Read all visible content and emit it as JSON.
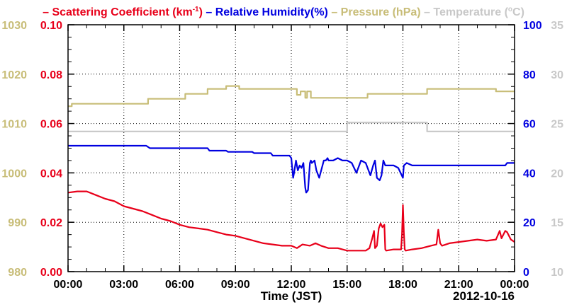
{
  "chart_data": {
    "type": "line",
    "date_label": "2012-10-16",
    "xlabel": "Time (JST)",
    "x_ticks": [
      "00:00",
      "03:00",
      "06:00",
      "09:00",
      "12:00",
      "15:00",
      "18:00",
      "21:00",
      "00:00"
    ],
    "xlim_hours": [
      0,
      24
    ],
    "grid": true,
    "legend_placement": "top",
    "legend": [
      {
        "dash": "–",
        "text": "Scattering Coefficient (km",
        "sup": "-1",
        "tail": ")",
        "color": "#e8001a"
      },
      {
        "dash": "–",
        "text": "Relative Humidity(%)",
        "sup": "",
        "tail": "",
        "color": "#0000e0"
      },
      {
        "dash": "–",
        "text": "Pressure (hPa)",
        "sup": "",
        "tail": "",
        "color": "#c8bd78"
      },
      {
        "dash": "–",
        "text": "Temperature (",
        "sup": "o",
        "tail": "C)",
        "color": "#c8c8c8"
      }
    ],
    "axes": {
      "pressure": {
        "side": "left-outer",
        "color": "#c8bd78",
        "ylim": [
          980,
          1030
        ],
        "ticks": [
          "980",
          "990",
          "1000",
          "1010",
          "1020",
          "1030"
        ]
      },
      "scattering": {
        "side": "left-inner",
        "color": "#e8001a",
        "ylim": [
          0,
          0.1
        ],
        "ticks": [
          "0.00",
          "0.02",
          "0.04",
          "0.06",
          "0.08",
          "0.10"
        ]
      },
      "humidity": {
        "side": "right-inner",
        "color": "#0000e0",
        "ylim": [
          0,
          100
        ],
        "ticks": [
          "0",
          "20",
          "40",
          "60",
          "80",
          "100"
        ]
      },
      "temperature": {
        "side": "right-outer",
        "color": "#c8c8c8",
        "ylim": [
          10,
          35
        ],
        "ticks": [
          "10",
          "15",
          "20",
          "25",
          "30",
          "35"
        ]
      }
    },
    "series": [
      {
        "name": "Pressure (hPa)",
        "axis": "pressure",
        "color": "#c8bd78",
        "step": true,
        "x": [
          0,
          0.2,
          4.3,
          6.3,
          7.5,
          8.5,
          9.2,
          12.3,
          12.5,
          12.75,
          12.85,
          13.05,
          15.0,
          16.1,
          19.3,
          23.0,
          24.0
        ],
        "y": [
          1013.5,
          1014.0,
          1015.0,
          1016.0,
          1017.0,
          1017.6,
          1017.0,
          1015.8,
          1016.5,
          1015.2,
          1016.5,
          1015.2,
          1015.2,
          1016.0,
          1017.0,
          1016.5,
          1016.5
        ]
      },
      {
        "name": "Temperature",
        "axis": "temperature",
        "color": "#c8c8c8",
        "step": true,
        "x": [
          0,
          15.0,
          19.3,
          24.0
        ],
        "y": [
          24.2,
          25.1,
          24.2,
          24.2
        ]
      },
      {
        "name": "Relative Humidity(%)",
        "axis": "humidity",
        "color": "#0000e0",
        "x": [
          0,
          4.2,
          4.4,
          7.5,
          7.6,
          8.5,
          8.6,
          9.9,
          10.0,
          10.9,
          11.0,
          11.9,
          12.0,
          12.1,
          12.15,
          12.25,
          12.35,
          12.45,
          12.55,
          12.65,
          12.75,
          12.8,
          12.9,
          13.0,
          13.05,
          13.1,
          13.25,
          13.35,
          13.5,
          13.75,
          13.85,
          13.95,
          14.0,
          14.25,
          14.5,
          14.75,
          15.0,
          15.25,
          15.5,
          15.75,
          16.0,
          16.25,
          16.4,
          16.5,
          16.6,
          16.75,
          16.85,
          16.95,
          17.05,
          17.3,
          17.5,
          17.75,
          18.0,
          18.05,
          18.2,
          18.5,
          19.0,
          19.5,
          20.0,
          21.0,
          22.0,
          23.0,
          23.5,
          23.6,
          23.8,
          24.0
        ],
        "y": [
          51,
          51,
          50,
          50,
          49,
          49,
          48.5,
          48.5,
          48,
          48,
          47,
          47,
          46,
          38,
          40,
          45,
          41,
          43,
          42,
          44,
          34,
          32,
          33,
          44,
          45,
          44,
          45,
          41,
          38,
          45,
          45,
          46,
          45,
          45,
          46,
          45,
          45,
          44,
          40,
          45,
          44,
          39,
          43,
          45,
          38,
          37,
          39,
          45,
          43,
          43,
          43,
          42,
          38,
          43,
          44,
          43,
          43,
          43,
          43,
          43,
          43,
          43,
          43,
          44,
          44,
          44
        ]
      },
      {
        "name": "Scattering Coefficient (km-1)",
        "axis": "scattering",
        "color": "#e8001a",
        "x": [
          0,
          0.5,
          1.0,
          1.5,
          2.0,
          2.5,
          3.0,
          3.5,
          4.0,
          4.5,
          5.0,
          5.5,
          6.0,
          6.5,
          7.0,
          7.5,
          8.0,
          8.5,
          9.0,
          9.5,
          10.0,
          10.5,
          11.0,
          11.5,
          12.0,
          12.3,
          12.6,
          13.0,
          13.3,
          13.6,
          14.0,
          14.5,
          15.0,
          15.5,
          16.0,
          16.2,
          16.35,
          16.45,
          16.5,
          16.6,
          16.7,
          16.8,
          16.9,
          17.0,
          17.05,
          17.1,
          17.5,
          17.9,
          17.95,
          18.0,
          18.05,
          18.1,
          18.15,
          18.5,
          19.0,
          19.5,
          19.8,
          19.9,
          20.0,
          20.1,
          20.5,
          21.0,
          21.5,
          22.0,
          22.5,
          23.0,
          23.2,
          23.3,
          23.5,
          23.6,
          23.8,
          24.0
        ],
        "y": [
          0.032,
          0.0325,
          0.0325,
          0.031,
          0.0295,
          0.0285,
          0.0265,
          0.0255,
          0.0245,
          0.023,
          0.0215,
          0.0205,
          0.019,
          0.018,
          0.0175,
          0.017,
          0.016,
          0.015,
          0.0145,
          0.0135,
          0.0125,
          0.0115,
          0.011,
          0.0105,
          0.0105,
          0.0095,
          0.011,
          0.0105,
          0.0115,
          0.0105,
          0.0095,
          0.0095,
          0.0085,
          0.0085,
          0.0085,
          0.0095,
          0.0135,
          0.0165,
          0.0095,
          0.0105,
          0.0175,
          0.0195,
          0.018,
          0.019,
          0.009,
          0.0085,
          0.009,
          0.009,
          0.015,
          0.027,
          0.016,
          0.009,
          0.0085,
          0.009,
          0.0095,
          0.0105,
          0.011,
          0.017,
          0.0115,
          0.0105,
          0.0115,
          0.012,
          0.0125,
          0.013,
          0.0125,
          0.013,
          0.0165,
          0.0135,
          0.0165,
          0.016,
          0.013,
          0.012
        ]
      }
    ]
  }
}
